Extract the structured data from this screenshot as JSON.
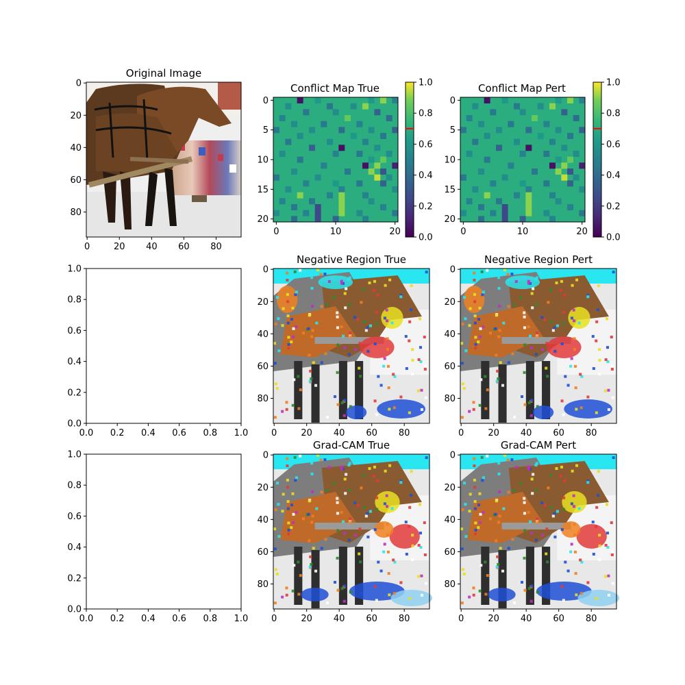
{
  "chart_data": [
    {
      "id": "original",
      "type": "image",
      "title": "Original Image",
      "image_content": "two brown horses in harness pulling a wooden pole, parade crowd in background",
      "xlim": [
        0,
        96
      ],
      "ylim": [
        96,
        0
      ],
      "xticks": [
        0,
        20,
        40,
        60,
        80
      ],
      "yticks": [
        0,
        20,
        40,
        60,
        80
      ]
    },
    {
      "id": "conflict_true",
      "type": "heatmap",
      "title": "Conflict Map True",
      "grid_size": 21,
      "xlim": [
        0,
        21
      ],
      "ylim": [
        21,
        0
      ],
      "xticks": [
        0,
        10,
        20
      ],
      "yticks": [
        0,
        5,
        10,
        15,
        20
      ],
      "base_value": 0.7,
      "threshold_line": 0.7,
      "colormap": "viridis",
      "cells": [
        [
          0,
          4,
          0.05
        ],
        [
          0,
          7,
          0.6
        ],
        [
          0,
          16,
          0.6
        ],
        [
          0,
          18,
          0.9
        ],
        [
          0,
          20,
          0.5
        ],
        [
          1,
          2,
          0.55
        ],
        [
          1,
          9,
          0.45
        ],
        [
          1,
          13,
          0.55
        ],
        [
          1,
          15,
          0.9
        ],
        [
          2,
          5,
          0.45
        ],
        [
          2,
          10,
          0.55
        ],
        [
          2,
          17,
          0.35
        ],
        [
          3,
          1,
          0.5
        ],
        [
          3,
          12,
          0.85
        ],
        [
          3,
          19,
          0.4
        ],
        [
          4,
          3,
          0.55
        ],
        [
          4,
          8,
          0.45
        ],
        [
          4,
          14,
          0.5
        ],
        [
          5,
          0,
          0.45
        ],
        [
          5,
          6,
          0.55
        ],
        [
          5,
          11,
          0.4
        ],
        [
          5,
          16,
          0.55
        ],
        [
          5,
          20,
          0.35
        ],
        [
          6,
          4,
          0.55
        ],
        [
          6,
          13,
          0.6
        ],
        [
          6,
          18,
          0.45
        ],
        [
          7,
          2,
          0.45
        ],
        [
          7,
          9,
          0.55
        ],
        [
          7,
          15,
          0.5
        ],
        [
          8,
          6,
          0.35
        ],
        [
          8,
          11,
          0.05
        ],
        [
          8,
          17,
          0.55
        ],
        [
          9,
          1,
          0.55
        ],
        [
          9,
          10,
          0.5
        ],
        [
          9,
          14,
          0.45
        ],
        [
          9,
          19,
          0.55
        ],
        [
          10,
          4,
          0.45
        ],
        [
          10,
          16,
          0.6
        ],
        [
          10,
          18,
          0.85
        ],
        [
          11,
          8,
          0.5
        ],
        [
          11,
          15,
          0.05
        ],
        [
          11,
          17,
          0.9
        ],
        [
          11,
          20,
          0.1
        ],
        [
          12,
          3,
          0.55
        ],
        [
          12,
          12,
          0.45
        ],
        [
          12,
          16,
          0.9
        ],
        [
          12,
          18,
          0.3
        ],
        [
          13,
          0,
          0.45
        ],
        [
          13,
          7,
          0.55
        ],
        [
          13,
          17,
          0.95
        ],
        [
          13,
          19,
          0.55
        ],
        [
          14,
          5,
          0.5
        ],
        [
          14,
          10,
          0.6
        ],
        [
          14,
          14,
          0.45
        ],
        [
          14,
          18,
          0.35
        ],
        [
          15,
          2,
          0.55
        ],
        [
          15,
          11,
          0.5
        ],
        [
          15,
          20,
          0.55
        ],
        [
          16,
          4,
          0.9
        ],
        [
          16,
          9,
          0.5
        ],
        [
          16,
          11,
          0.9
        ],
        [
          16,
          15,
          0.5
        ],
        [
          17,
          1,
          0.5
        ],
        [
          17,
          6,
          0.45
        ],
        [
          17,
          11,
          0.9
        ],
        [
          17,
          16,
          0.55
        ],
        [
          18,
          3,
          0.45
        ],
        [
          18,
          7,
          0.25
        ],
        [
          18,
          11,
          0.9
        ],
        [
          18,
          18,
          0.5
        ],
        [
          19,
          0,
          0.55
        ],
        [
          19,
          5,
          0.5
        ],
        [
          19,
          7,
          0.25
        ],
        [
          19,
          11,
          0.9
        ],
        [
          19,
          14,
          0.55
        ],
        [
          19,
          20,
          0.45
        ],
        [
          20,
          3,
          0.4
        ],
        [
          20,
          7,
          0.25
        ],
        [
          20,
          10,
          0.35
        ],
        [
          20,
          15,
          0.5
        ]
      ]
    },
    {
      "id": "conflict_pert",
      "type": "heatmap",
      "title": "Conflict Map Pert",
      "grid_size": 21,
      "xlim": [
        0,
        21
      ],
      "ylim": [
        21,
        0
      ],
      "xticks": [
        0,
        10,
        20
      ],
      "yticks": [
        0,
        5,
        10,
        15,
        20
      ],
      "base_value": 0.7,
      "threshold_line": 0.7,
      "colormap": "viridis",
      "cells": [
        [
          0,
          4,
          0.05
        ],
        [
          0,
          7,
          0.6
        ],
        [
          0,
          16,
          0.6
        ],
        [
          0,
          18,
          0.9
        ],
        [
          0,
          20,
          0.5
        ],
        [
          1,
          2,
          0.55
        ],
        [
          1,
          9,
          0.45
        ],
        [
          1,
          13,
          0.55
        ],
        [
          1,
          15,
          0.9
        ],
        [
          2,
          5,
          0.45
        ],
        [
          2,
          10,
          0.55
        ],
        [
          2,
          17,
          0.35
        ],
        [
          3,
          1,
          0.5
        ],
        [
          3,
          12,
          0.85
        ],
        [
          3,
          19,
          0.4
        ],
        [
          4,
          3,
          0.55
        ],
        [
          4,
          8,
          0.45
        ],
        [
          4,
          14,
          0.5
        ],
        [
          5,
          0,
          0.45
        ],
        [
          5,
          6,
          0.55
        ],
        [
          5,
          11,
          0.4
        ],
        [
          5,
          16,
          0.55
        ],
        [
          5,
          20,
          0.35
        ],
        [
          6,
          4,
          0.55
        ],
        [
          6,
          13,
          0.6
        ],
        [
          6,
          18,
          0.45
        ],
        [
          7,
          2,
          0.45
        ],
        [
          7,
          9,
          0.55
        ],
        [
          7,
          15,
          0.5
        ],
        [
          8,
          6,
          0.35
        ],
        [
          8,
          11,
          0.05
        ],
        [
          8,
          17,
          0.55
        ],
        [
          9,
          1,
          0.55
        ],
        [
          9,
          10,
          0.5
        ],
        [
          9,
          14,
          0.45
        ],
        [
          9,
          19,
          0.55
        ],
        [
          10,
          4,
          0.45
        ],
        [
          10,
          16,
          0.6
        ],
        [
          10,
          18,
          0.85
        ],
        [
          11,
          8,
          0.5
        ],
        [
          11,
          15,
          0.05
        ],
        [
          11,
          17,
          0.9
        ],
        [
          11,
          20,
          0.1
        ],
        [
          12,
          3,
          0.55
        ],
        [
          12,
          12,
          0.45
        ],
        [
          12,
          16,
          0.9
        ],
        [
          12,
          18,
          0.3
        ],
        [
          13,
          0,
          0.45
        ],
        [
          13,
          7,
          0.55
        ],
        [
          13,
          17,
          0.95
        ],
        [
          13,
          19,
          0.55
        ],
        [
          14,
          5,
          0.5
        ],
        [
          14,
          10,
          0.6
        ],
        [
          14,
          14,
          0.45
        ],
        [
          14,
          18,
          0.35
        ],
        [
          15,
          2,
          0.55
        ],
        [
          15,
          11,
          0.5
        ],
        [
          15,
          20,
          0.55
        ],
        [
          16,
          4,
          0.9
        ],
        [
          16,
          9,
          0.5
        ],
        [
          16,
          11,
          0.9
        ],
        [
          16,
          15,
          0.5
        ],
        [
          17,
          1,
          0.5
        ],
        [
          17,
          6,
          0.45
        ],
        [
          17,
          11,
          0.9
        ],
        [
          17,
          16,
          0.55
        ],
        [
          18,
          3,
          0.45
        ],
        [
          18,
          7,
          0.25
        ],
        [
          18,
          11,
          0.9
        ],
        [
          18,
          18,
          0.5
        ],
        [
          19,
          0,
          0.55
        ],
        [
          19,
          5,
          0.5
        ],
        [
          19,
          7,
          0.25
        ],
        [
          19,
          11,
          0.9
        ],
        [
          19,
          14,
          0.55
        ],
        [
          19,
          20,
          0.45
        ],
        [
          20,
          3,
          0.4
        ],
        [
          20,
          7,
          0.25
        ],
        [
          20,
          10,
          0.35
        ],
        [
          20,
          15,
          0.5
        ]
      ]
    },
    {
      "id": "colorbars",
      "type": "colorbar",
      "range": [
        0,
        1
      ],
      "ticks": [
        "0.0",
        "0.2",
        "0.4",
        "0.6",
        "0.8",
        "1.0"
      ],
      "marker_value": 0.7,
      "marker_color": "#ff0000"
    },
    {
      "id": "negative_true",
      "type": "image",
      "title": "Negative Region True",
      "image_content": "horses with pseudo-color overlay: cyan, blue, red, orange patches",
      "xlim": [
        0,
        96
      ],
      "ylim": [
        96,
        0
      ],
      "xticks": [
        0,
        20,
        40,
        60,
        80
      ],
      "yticks": [
        0,
        20,
        40,
        60,
        80
      ]
    },
    {
      "id": "negative_pert",
      "type": "image",
      "title": "Negative Region Pert",
      "image_content": "horses with pseudo-color overlay: cyan, blue, red, orange patches",
      "xlim": [
        0,
        96
      ],
      "ylim": [
        96,
        0
      ],
      "xticks": [
        0,
        20,
        40,
        60,
        80
      ],
      "yticks": [
        0,
        20,
        40,
        60,
        80
      ]
    },
    {
      "id": "empty_1",
      "type": "empty",
      "title": "",
      "xlim": [
        0,
        1
      ],
      "ylim": [
        0,
        1
      ],
      "xticks": [
        "0.0",
        "0.2",
        "0.4",
        "0.6",
        "0.8",
        "1.0"
      ],
      "yticks": [
        "0.0",
        "0.2",
        "0.4",
        "0.6",
        "0.8",
        "1.0"
      ]
    },
    {
      "id": "empty_2",
      "type": "empty",
      "title": "",
      "xlim": [
        0,
        1
      ],
      "ylim": [
        0,
        1
      ],
      "xticks": [
        "0.0",
        "0.2",
        "0.4",
        "0.6",
        "0.8",
        "1.0"
      ],
      "yticks": [
        "0.0",
        "0.2",
        "0.4",
        "0.6",
        "0.8",
        "1.0"
      ]
    },
    {
      "id": "gradcam_true",
      "type": "image",
      "title": "Grad-CAM True",
      "image_content": "horses with pseudo-color overlay: cyan, blue, red, orange patches",
      "xlim": [
        0,
        96
      ],
      "ylim": [
        96,
        0
      ],
      "xticks": [
        0,
        20,
        40,
        60,
        80
      ],
      "yticks": [
        0,
        20,
        40,
        60,
        80
      ]
    },
    {
      "id": "gradcam_pert",
      "type": "image",
      "title": "Grad-CAM Pert",
      "image_content": "horses with pseudo-color overlay: cyan, blue, red, orange patches",
      "xlim": [
        0,
        96
      ],
      "ylim": [
        96,
        0
      ],
      "xticks": [
        0,
        20,
        40,
        60,
        80
      ],
      "yticks": [
        0,
        20,
        40,
        60,
        80
      ]
    }
  ],
  "colors": {
    "background": "#ffffff",
    "axis": "#000000",
    "marker": "#ff0000"
  }
}
